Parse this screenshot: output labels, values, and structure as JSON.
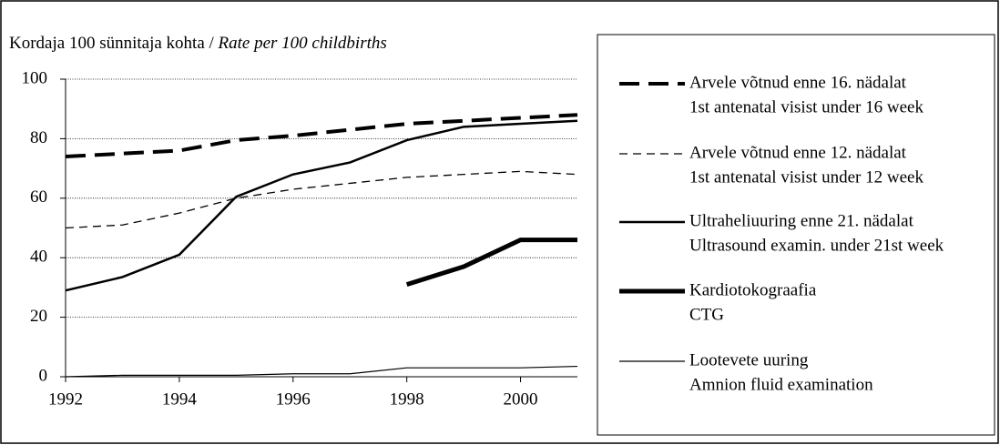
{
  "chart_data": {
    "type": "line",
    "title": "Kordaja 100 sünnitaja kohta /",
    "subtitle": "Rate per 100  childbirths",
    "x": [
      1992,
      1993,
      1994,
      1995,
      1996,
      1997,
      1998,
      1999,
      2000,
      2001
    ],
    "xlim": [
      1992,
      2001
    ],
    "xticks": [
      1992,
      1994,
      1996,
      1998,
      2000
    ],
    "ylim": [
      0,
      100
    ],
    "yticks": [
      0,
      20,
      40,
      60,
      80,
      100
    ],
    "grid": true,
    "legend": "right",
    "series": [
      {
        "name": "Arvele võtnud enne 16. nädalat",
        "name_en": "1st antenatal visist under 16 week",
        "color": "#000000",
        "width": 4,
        "dash": "22 10",
        "values": [
          74,
          75,
          76,
          79.5,
          81,
          83,
          85,
          86,
          87,
          88
        ]
      },
      {
        "name": "Arvele võtnud enne 12. nädalat",
        "name_en": "1st antenatal visist under 12 week",
        "color": "#000000",
        "width": 1.3,
        "dash": "9 6",
        "values": [
          50,
          51,
          55,
          60,
          63,
          65,
          67,
          68,
          69,
          68
        ]
      },
      {
        "name": "Ultraheliuuring enne 21. nädalat",
        "name_en": "Ultrasound examin. under 21st week",
        "color": "#000000",
        "width": 2.5,
        "dash": "none",
        "values": [
          29,
          33.5,
          41,
          60.5,
          68,
          72,
          79.5,
          84,
          85,
          86
        ]
      },
      {
        "name": "Kardiotokograafia",
        "name_en": "CTG",
        "color": "#000000",
        "width": 5,
        "dash": "none",
        "values": [
          null,
          null,
          null,
          null,
          null,
          null,
          31,
          37,
          46,
          46
        ]
      },
      {
        "name": "Lootevete uuring",
        "name_en": "Amnion fluid examination",
        "color": "#000000",
        "width": 1.2,
        "dash": "none",
        "values": [
          0,
          0.5,
          0.5,
          0.5,
          1,
          1,
          3,
          3,
          3,
          3.5
        ]
      }
    ]
  }
}
